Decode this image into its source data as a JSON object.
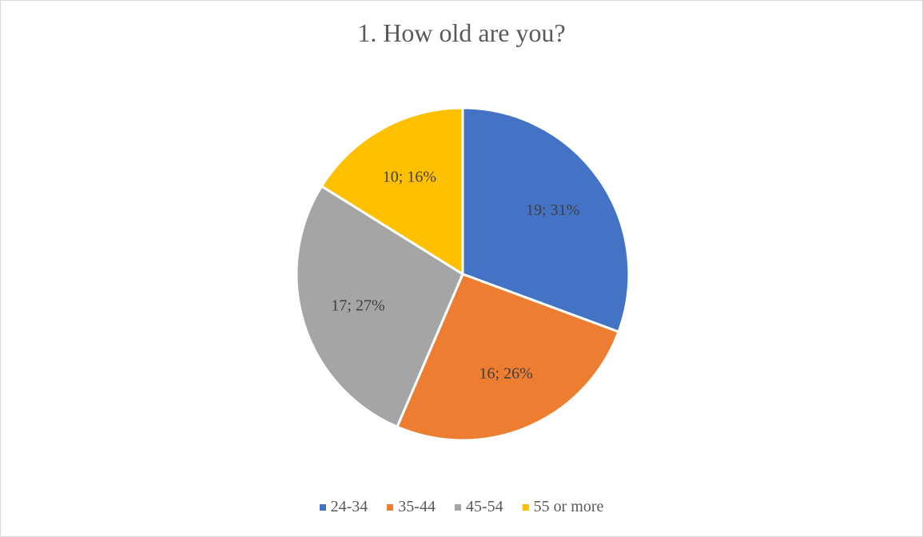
{
  "chart_data": {
    "type": "pie",
    "title": "1. How old are you?",
    "categories": [
      "24-34",
      "35-44",
      "45-54",
      "55 or more"
    ],
    "values": [
      19,
      16,
      17,
      10
    ],
    "percent_labels": [
      "31%",
      "26%",
      "27%",
      "16%"
    ],
    "data_labels": [
      "19; 31%",
      "16; 26%",
      "17; 27%",
      "10; 16%"
    ],
    "colors": [
      "#4472c4",
      "#ed7d31",
      "#a5a5a5",
      "#ffc000"
    ],
    "legend_position": "bottom",
    "start_angle_deg": 0,
    "direction": "clockwise"
  }
}
